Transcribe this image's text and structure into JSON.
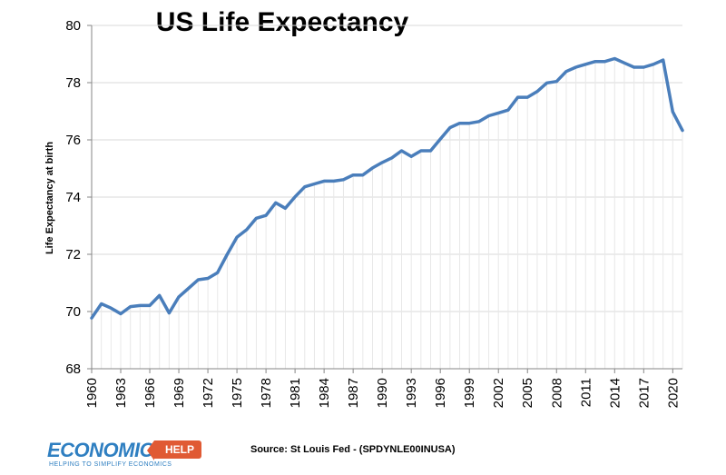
{
  "chart_data": {
    "type": "line",
    "title": "US Life Expectancy",
    "xlabel": "",
    "ylabel": "Life Expectancy at birth",
    "ylim": [
      68,
      80
    ],
    "yticks": [
      68,
      70,
      72,
      74,
      76,
      78,
      80
    ],
    "xlim": [
      1960,
      2021
    ],
    "xticks": [
      1960,
      1963,
      1966,
      1969,
      1972,
      1975,
      1978,
      1981,
      1984,
      1987,
      1990,
      1993,
      1996,
      1999,
      2002,
      2005,
      2008,
      2011,
      2014,
      2017,
      2020
    ],
    "series": [
      {
        "name": "Life Expectancy at birth",
        "color": "#4a7ebb",
        "x": [
          1960,
          1961,
          1962,
          1963,
          1964,
          1965,
          1966,
          1967,
          1968,
          1969,
          1970,
          1971,
          1972,
          1973,
          1974,
          1975,
          1976,
          1977,
          1978,
          1979,
          1980,
          1981,
          1982,
          1983,
          1984,
          1985,
          1986,
          1987,
          1988,
          1989,
          1990,
          1991,
          1992,
          1993,
          1994,
          1995,
          1996,
          1997,
          1998,
          1999,
          2000,
          2001,
          2002,
          2003,
          2004,
          2005,
          2006,
          2007,
          2008,
          2009,
          2010,
          2011,
          2012,
          2013,
          2014,
          2015,
          2016,
          2017,
          2018,
          2019,
          2020,
          2021
        ],
        "values": [
          69.77,
          70.27,
          70.12,
          69.92,
          70.17,
          70.21,
          70.21,
          70.56,
          69.95,
          70.51,
          70.81,
          71.11,
          71.16,
          71.36,
          72.0,
          72.6,
          72.86,
          73.26,
          73.36,
          73.8,
          73.61,
          74.01,
          74.36,
          74.46,
          74.56,
          74.56,
          74.61,
          74.77,
          74.77,
          75.02,
          75.21,
          75.37,
          75.62,
          75.42,
          75.62,
          75.62,
          76.03,
          76.43,
          76.58,
          76.58,
          76.64,
          76.84,
          76.94,
          77.04,
          77.49,
          77.49,
          77.69,
          77.99,
          78.04,
          78.39,
          78.54,
          78.64,
          78.74,
          78.74,
          78.84,
          78.69,
          78.54,
          78.54,
          78.64,
          78.79,
          76.98,
          76.33
        ]
      }
    ]
  },
  "source": "Source: St Louis Fed - (SPDYNLE00INUSA)",
  "logo": {
    "main": "ECONOMICS",
    "badge": "HELP",
    "tagline": "HELPING TO SIMPLIFY ECONOMICS"
  },
  "colors": {
    "line": "#4a7ebb",
    "grid": "#d9d9d9",
    "axis": "#868686",
    "logo_blue": "#2f7fc1",
    "logo_orange": "#e05a34"
  }
}
